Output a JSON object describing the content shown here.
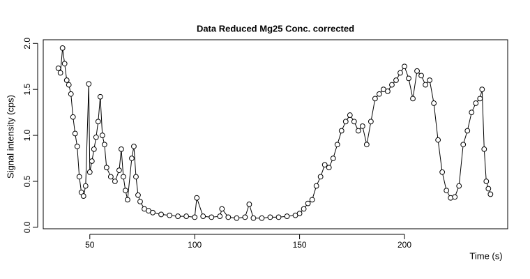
{
  "chart_data": {
    "type": "scatter",
    "title": "Data Reduced Mg25 Conc. corrected",
    "x_label": "Time (s)",
    "y_label": "Signal intensity (cps)",
    "x": [
      35,
      36,
      37,
      38,
      39,
      40,
      41,
      42,
      43,
      44,
      45,
      46,
      47,
      48,
      49.5,
      50,
      51,
      52,
      53,
      54,
      55,
      56,
      57,
      58,
      60,
      62,
      64,
      65,
      66,
      67,
      68,
      70,
      71,
      72,
      73,
      74,
      76,
      78,
      80,
      84,
      88,
      92,
      96,
      100,
      101,
      104,
      108,
      112,
      113,
      116,
      120,
      124,
      126,
      128,
      132,
      136,
      140,
      144,
      148,
      150,
      152,
      154,
      156,
      158,
      160,
      162,
      164,
      166,
      168,
      170,
      172,
      174,
      176,
      178,
      180,
      182,
      184,
      186,
      188,
      190,
      192,
      194,
      196,
      198,
      200,
      202,
      204,
      206,
      208,
      210,
      212,
      214,
      216,
      218,
      220,
      222,
      224,
      226,
      228,
      230,
      232,
      234,
      236,
      237,
      238,
      239,
      240,
      241
    ],
    "values": [
      1.73,
      1.68,
      1.95,
      1.78,
      1.6,
      1.55,
      1.45,
      1.2,
      1.02,
      0.88,
      0.55,
      0.38,
      0.34,
      0.45,
      1.56,
      0.6,
      0.72,
      0.85,
      0.98,
      1.15,
      1.42,
      1.0,
      0.9,
      0.65,
      0.55,
      0.5,
      0.62,
      0.85,
      0.55,
      0.4,
      0.3,
      0.75,
      0.88,
      0.55,
      0.35,
      0.28,
      0.2,
      0.18,
      0.16,
      0.14,
      0.13,
      0.12,
      0.12,
      0.11,
      0.32,
      0.12,
      0.11,
      0.12,
      0.2,
      0.11,
      0.1,
      0.11,
      0.25,
      0.1,
      0.1,
      0.11,
      0.11,
      0.12,
      0.13,
      0.15,
      0.2,
      0.26,
      0.3,
      0.45,
      0.55,
      0.68,
      0.65,
      0.75,
      0.9,
      1.05,
      1.15,
      1.22,
      1.15,
      1.05,
      1.1,
      0.9,
      1.15,
      1.4,
      1.45,
      1.5,
      1.48,
      1.55,
      1.6,
      1.68,
      1.75,
      1.62,
      1.4,
      1.7,
      1.65,
      1.55,
      1.6,
      1.35,
      0.95,
      0.6,
      0.4,
      0.32,
      0.33,
      0.45,
      0.9,
      1.05,
      1.25,
      1.35,
      1.4,
      1.5,
      0.85,
      0.5,
      0.42,
      0.36
    ],
    "color": "#000000",
    "xlim": [
      27.8,
      249.2
    ],
    "ylim": [
      -0.016,
      2.04
    ],
    "xticks": [
      50,
      100,
      150,
      200
    ],
    "yticks": [
      {
        "value": 0,
        "label": "0.0"
      },
      {
        "value": 0.5,
        "label": "0.5"
      },
      {
        "value": 1,
        "label": "1.0"
      },
      {
        "value": 1.5,
        "label": "1.5"
      },
      {
        "value": 2,
        "label": "2.0"
      }
    ]
  }
}
